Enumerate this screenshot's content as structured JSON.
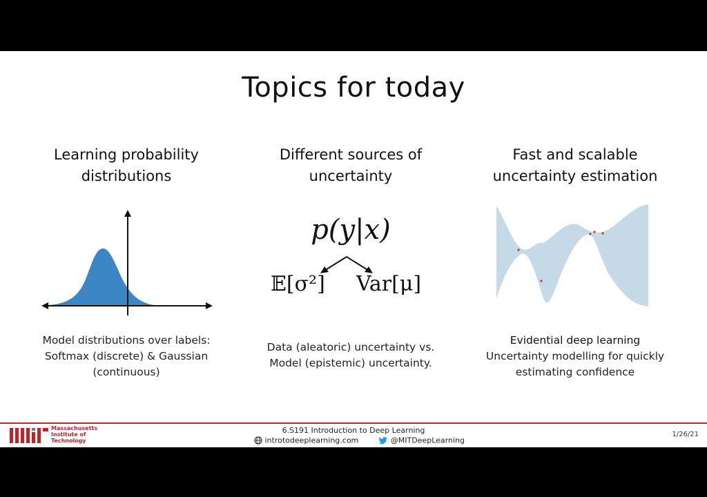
{
  "slide": {
    "title": "Topics for today",
    "columns": [
      {
        "heading_line1": "Learning probability",
        "heading_line2": "distributions",
        "caption_line1": "Model distributions over labels:",
        "caption_line2": "Softmax (discrete) & Gaussian",
        "caption_line3": "(continuous)"
      },
      {
        "heading_line1": "Different sources of",
        "heading_line2": "uncertainty",
        "formula": "p(y|x)",
        "formula_left": "𝔼[σ²]",
        "formula_right": "Var[μ]",
        "caption_line1": "Data (aleatoric) uncertainty vs.",
        "caption_line2": "Model (epistemic) uncertainty."
      },
      {
        "heading_line1": "Fast and scalable",
        "heading_line2": "uncertainty estimation",
        "caption_line1": "Evidential deep learning",
        "caption_line2": "Uncertainty modelling for quickly",
        "caption_line3": "estimating confidence"
      }
    ]
  },
  "footer": {
    "institution_line1": "Massachusetts",
    "institution_line2": "Institute of",
    "institution_line3": "Technology",
    "course": "6.S191 Introduction to Deep Learning",
    "website": "introtodeeplearning.com",
    "twitter": "@MITDeepLearning",
    "date": "1/26/21"
  },
  "colors": {
    "gaussian_fill": "#3c86c6",
    "uncertainty_band": "#c6d9e7",
    "mit_red": "#b1282e"
  },
  "icons": [
    "globe-icon",
    "twitter-bird-icon",
    "mit-logo"
  ]
}
